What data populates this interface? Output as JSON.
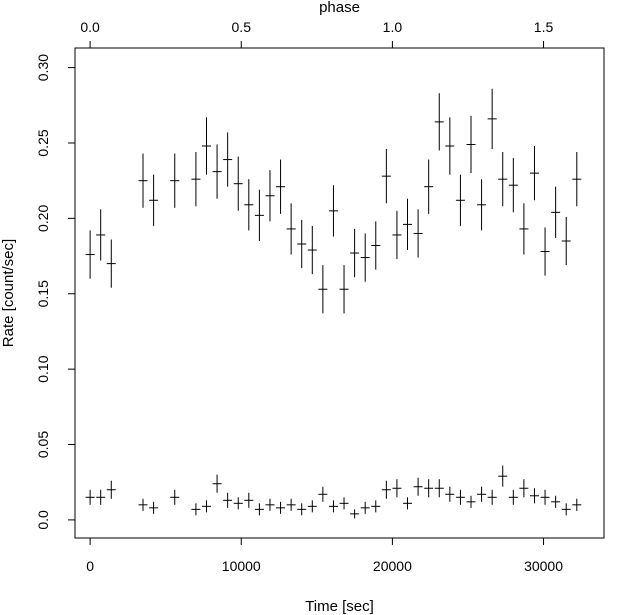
{
  "chart_data": {
    "type": "scatter",
    "title": "",
    "xlabel": "Time [sec]",
    "ylabel": "Rate [count/sec]",
    "top_axis_label": "phase",
    "xlim": [
      -1000,
      34000
    ],
    "ylim": [
      -0.012,
      0.313
    ],
    "x_ticks": [
      0,
      10000,
      20000,
      30000
    ],
    "x_tick_labels": [
      "0",
      "10000",
      "20000",
      "30000"
    ],
    "y_ticks": [
      0.0,
      0.05,
      0.1,
      0.15,
      0.2,
      0.25,
      0.3
    ],
    "y_tick_labels": [
      "0.0",
      "0.05",
      "0.10",
      "0.15",
      "0.20",
      "0.25",
      "0.30"
    ],
    "top_ticks": [
      0.0,
      0.5,
      1.0,
      1.5
    ],
    "top_tick_labels": [
      "0.0",
      "0.5",
      "1.0",
      "1.5"
    ],
    "phase_period_sec": 20000,
    "grid": false,
    "marker": "errorbar-cross",
    "series": [
      {
        "x": [
          0,
          700,
          1400,
          3500,
          4200,
          5600,
          7000,
          7700,
          8400,
          9100,
          9800,
          10500,
          11200,
          11900,
          12600,
          13300,
          14000,
          14700,
          15400,
          16100,
          16800,
          17500,
          18200,
          18900,
          19600,
          20300,
          21000,
          21700,
          22400,
          23100,
          23800,
          24500,
          25200,
          25900,
          26600,
          27300,
          28000,
          28700,
          29400,
          30100,
          30800,
          31500,
          32200
        ],
        "y": [
          0.176,
          0.189,
          0.17,
          0.225,
          0.212,
          0.225,
          0.226,
          0.248,
          0.231,
          0.239,
          0.223,
          0.209,
          0.202,
          0.215,
          0.221,
          0.193,
          0.183,
          0.179,
          0.153,
          0.205,
          0.153,
          0.177,
          0.174,
          0.182,
          0.228,
          0.189,
          0.196,
          0.19,
          0.221,
          0.264,
          0.248,
          0.212,
          0.249,
          0.209,
          0.266,
          0.226,
          0.222,
          0.193,
          0.23,
          0.178,
          0.204,
          0.185,
          0.226
        ],
        "yerr": [
          0.016,
          0.017,
          0.016,
          0.018,
          0.017,
          0.018,
          0.018,
          0.019,
          0.018,
          0.018,
          0.018,
          0.017,
          0.017,
          0.017,
          0.018,
          0.017,
          0.016,
          0.016,
          0.016,
          0.017,
          0.016,
          0.016,
          0.016,
          0.016,
          0.018,
          0.016,
          0.017,
          0.016,
          0.018,
          0.019,
          0.019,
          0.017,
          0.019,
          0.017,
          0.02,
          0.018,
          0.018,
          0.017,
          0.018,
          0.016,
          0.017,
          0.016,
          0.018
        ]
      },
      {
        "x": [
          0,
          700,
          1400,
          3500,
          4200,
          5600,
          7000,
          7700,
          8400,
          9100,
          9800,
          10500,
          11200,
          11900,
          12600,
          13300,
          14000,
          14700,
          15400,
          16100,
          16800,
          17500,
          18200,
          18900,
          19600,
          20300,
          21000,
          21700,
          22400,
          23100,
          23800,
          24500,
          25200,
          25900,
          26600,
          27300,
          28000,
          28700,
          29400,
          30100,
          30800,
          31500,
          32200
        ],
        "y": [
          0.015,
          0.015,
          0.02,
          0.01,
          0.008,
          0.015,
          0.007,
          0.009,
          0.024,
          0.013,
          0.011,
          0.013,
          0.007,
          0.01,
          0.008,
          0.01,
          0.007,
          0.009,
          0.017,
          0.009,
          0.011,
          0.004,
          0.008,
          0.009,
          0.02,
          0.021,
          0.011,
          0.022,
          0.021,
          0.021,
          0.017,
          0.015,
          0.012,
          0.017,
          0.015,
          0.029,
          0.015,
          0.021,
          0.016,
          0.015,
          0.012,
          0.007,
          0.01
        ],
        "yerr": [
          0.005,
          0.005,
          0.006,
          0.004,
          0.004,
          0.005,
          0.004,
          0.004,
          0.006,
          0.005,
          0.004,
          0.005,
          0.004,
          0.004,
          0.004,
          0.004,
          0.004,
          0.004,
          0.005,
          0.004,
          0.004,
          0.003,
          0.004,
          0.004,
          0.006,
          0.006,
          0.004,
          0.006,
          0.006,
          0.006,
          0.005,
          0.005,
          0.004,
          0.005,
          0.005,
          0.007,
          0.005,
          0.006,
          0.005,
          0.005,
          0.004,
          0.004,
          0.004
        ]
      }
    ]
  }
}
